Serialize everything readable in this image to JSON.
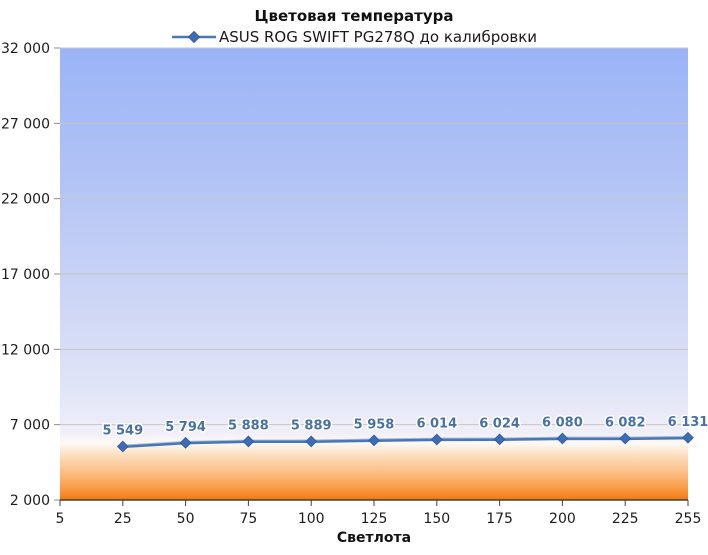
{
  "title": "Цветовая температура",
  "legend": {
    "series_label": "ASUS ROG SWIFT PG278Q до калибровки"
  },
  "axes": {
    "x_label": "Светлота",
    "x_ticks": [
      "5",
      "25",
      "50",
      "75",
      "100",
      "125",
      "150",
      "175",
      "200",
      "225",
      "255"
    ],
    "y_ticks": [
      "2 000",
      "7 000",
      "12 000",
      "17 000",
      "22 000",
      "27 000",
      "32 000"
    ],
    "y_tick_values": [
      2000,
      7000,
      12000,
      17000,
      22000,
      27000,
      32000
    ]
  },
  "chart_data": {
    "type": "line",
    "title": "Цветовая температура",
    "xlabel": "Светлота",
    "ylabel": "",
    "categories": [
      5,
      25,
      50,
      75,
      100,
      125,
      150,
      175,
      200,
      225,
      255
    ],
    "ylim": [
      2000,
      32000
    ],
    "grid": true,
    "legend_position": "top",
    "series": [
      {
        "name": "ASUS ROG SWIFT PG278Q до калибровки",
        "x": [
          25,
          50,
          75,
          100,
          125,
          150,
          175,
          200,
          225,
          255
        ],
        "values": [
          5549,
          5794,
          5888,
          5889,
          5958,
          6014,
          6024,
          6080,
          6082,
          6131
        ]
      }
    ],
    "data_labels": [
      "5 549",
      "5 794",
      "5 888",
      "5 889",
      "5 958",
      "6 014",
      "6 024",
      "6 080",
      "6 082",
      "6 131"
    ],
    "colors": {
      "line": "#4a77b4",
      "line_highlight": "#a9c0e0",
      "marker": "#3e6db8",
      "marker_edge": "#325d9e",
      "data_label": "#4971a3",
      "gridline": "#c8c5c0",
      "axis_line": "#404040",
      "tick": "#8c8c8c",
      "plot_gradient_top": "#9ab4f7",
      "plot_gradient_bottom": "#f1770d"
    }
  }
}
